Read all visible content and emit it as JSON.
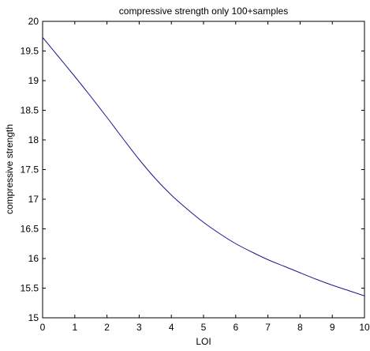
{
  "chart_data": {
    "type": "line",
    "title": "compressive strength only 100+samples",
    "xlabel": "LOI",
    "ylabel": "compressive strength",
    "xlim": [
      0,
      10
    ],
    "ylim": [
      15,
      20
    ],
    "xticks": [
      0,
      1,
      2,
      3,
      4,
      5,
      6,
      7,
      8,
      9,
      10
    ],
    "xtick_labels": [
      "0",
      "1",
      "2",
      "3",
      "4",
      "5",
      "6",
      "7",
      "8",
      "9",
      "10"
    ],
    "yticks": [
      15,
      15.5,
      16,
      16.5,
      17,
      17.5,
      18,
      18.5,
      19,
      19.5,
      20
    ],
    "ytick_labels": [
      "15",
      "15.5",
      "16",
      "16.5",
      "17",
      "17.5",
      "18",
      "18.5",
      "19",
      "19.5",
      "20"
    ],
    "grid": false,
    "legend": "none",
    "series": [
      {
        "color": "#1a1a8c",
        "x": [
          0,
          0.5,
          1,
          1.5,
          2,
          2.5,
          3,
          3.5,
          4,
          4.5,
          5,
          5.5,
          6,
          6.5,
          7,
          7.5,
          8,
          8.5,
          9,
          9.5,
          10
        ],
        "y": [
          19.73,
          19.4,
          19.07,
          18.73,
          18.38,
          18.02,
          17.67,
          17.35,
          17.07,
          16.83,
          16.61,
          16.42,
          16.25,
          16.11,
          15.98,
          15.87,
          15.76,
          15.65,
          15.55,
          15.46,
          15.37
        ]
      }
    ]
  }
}
